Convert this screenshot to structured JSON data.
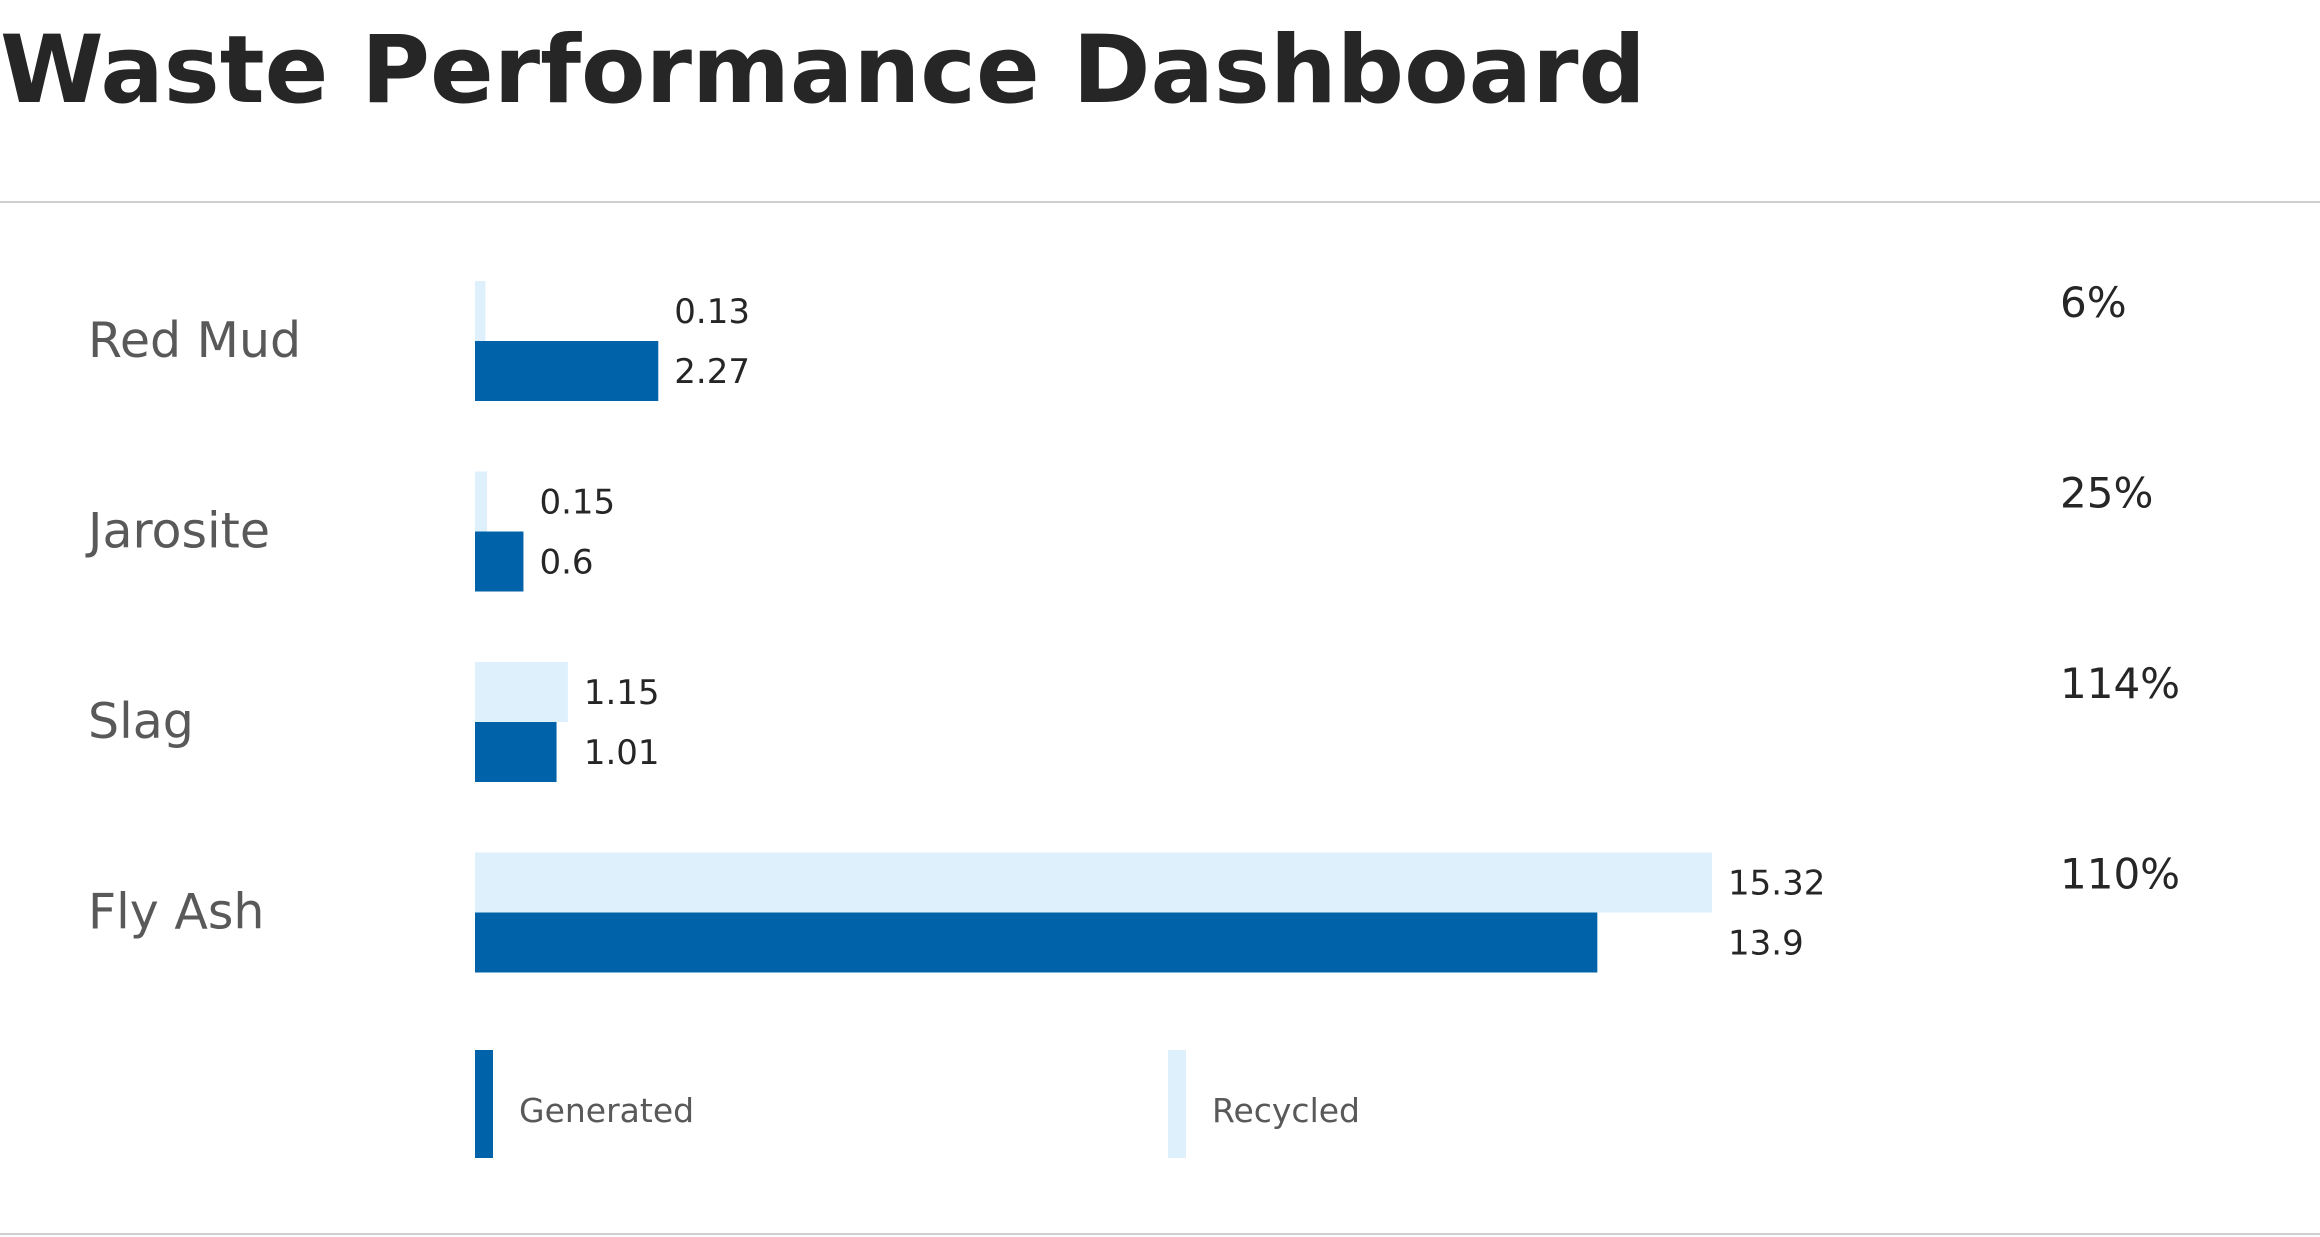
{
  "title": "Waste Performance Dashboard",
  "colors": {
    "generated": "#0063a9",
    "recycled": "#def0fc"
  },
  "chart_data": {
    "type": "bar",
    "orientation": "horizontal",
    "title": "Waste Performance Dashboard",
    "categories": [
      "Red Mud",
      "Jarosite",
      "Slag",
      "Fly Ash"
    ],
    "series": [
      {
        "name": "Recycled",
        "values": [
          0.13,
          0.15,
          1.15,
          15.32
        ],
        "labels": [
          "0.13",
          "0.15",
          "1.15",
          "15.32"
        ]
      },
      {
        "name": "Generated",
        "values": [
          2.27,
          0.6,
          1.01,
          13.9
        ],
        "labels": [
          "2.27",
          "0.6",
          "1.01",
          "13.9"
        ]
      }
    ],
    "percentages": [
      "6%",
      "25%",
      "114%",
      "110%"
    ],
    "legend": [
      "Generated",
      "Recycled"
    ],
    "xlim": [
      0,
      15.32
    ],
    "grid": false,
    "legend_position": "bottom"
  }
}
